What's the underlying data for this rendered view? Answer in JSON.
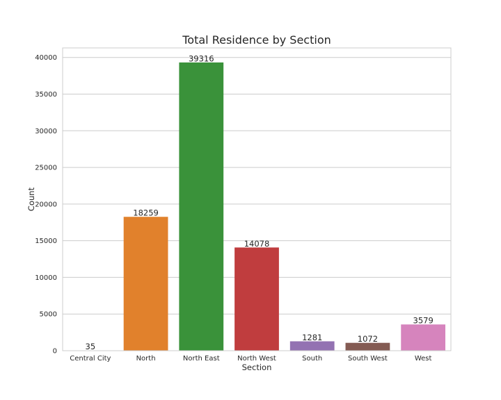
{
  "chart_data": {
    "type": "bar",
    "title": "Total Residence by Section",
    "xlabel": "Section",
    "ylabel": "Count",
    "categories": [
      "Central City",
      "North",
      "North East",
      "North West",
      "South",
      "South West",
      "West"
    ],
    "values": [
      35,
      18259,
      39316,
      14078,
      1281,
      1072,
      3579
    ],
    "colors": [
      "#1f77b4",
      "#e1812c",
      "#3a923a",
      "#c03d3e",
      "#9372b2",
      "#845b53",
      "#d684bd"
    ],
    "ylim": [
      0,
      41300
    ],
    "yticks": [
      0,
      5000,
      10000,
      15000,
      20000,
      25000,
      30000,
      35000,
      40000
    ],
    "grid": true,
    "grid_color": "#cccccc",
    "legend": "none"
  }
}
